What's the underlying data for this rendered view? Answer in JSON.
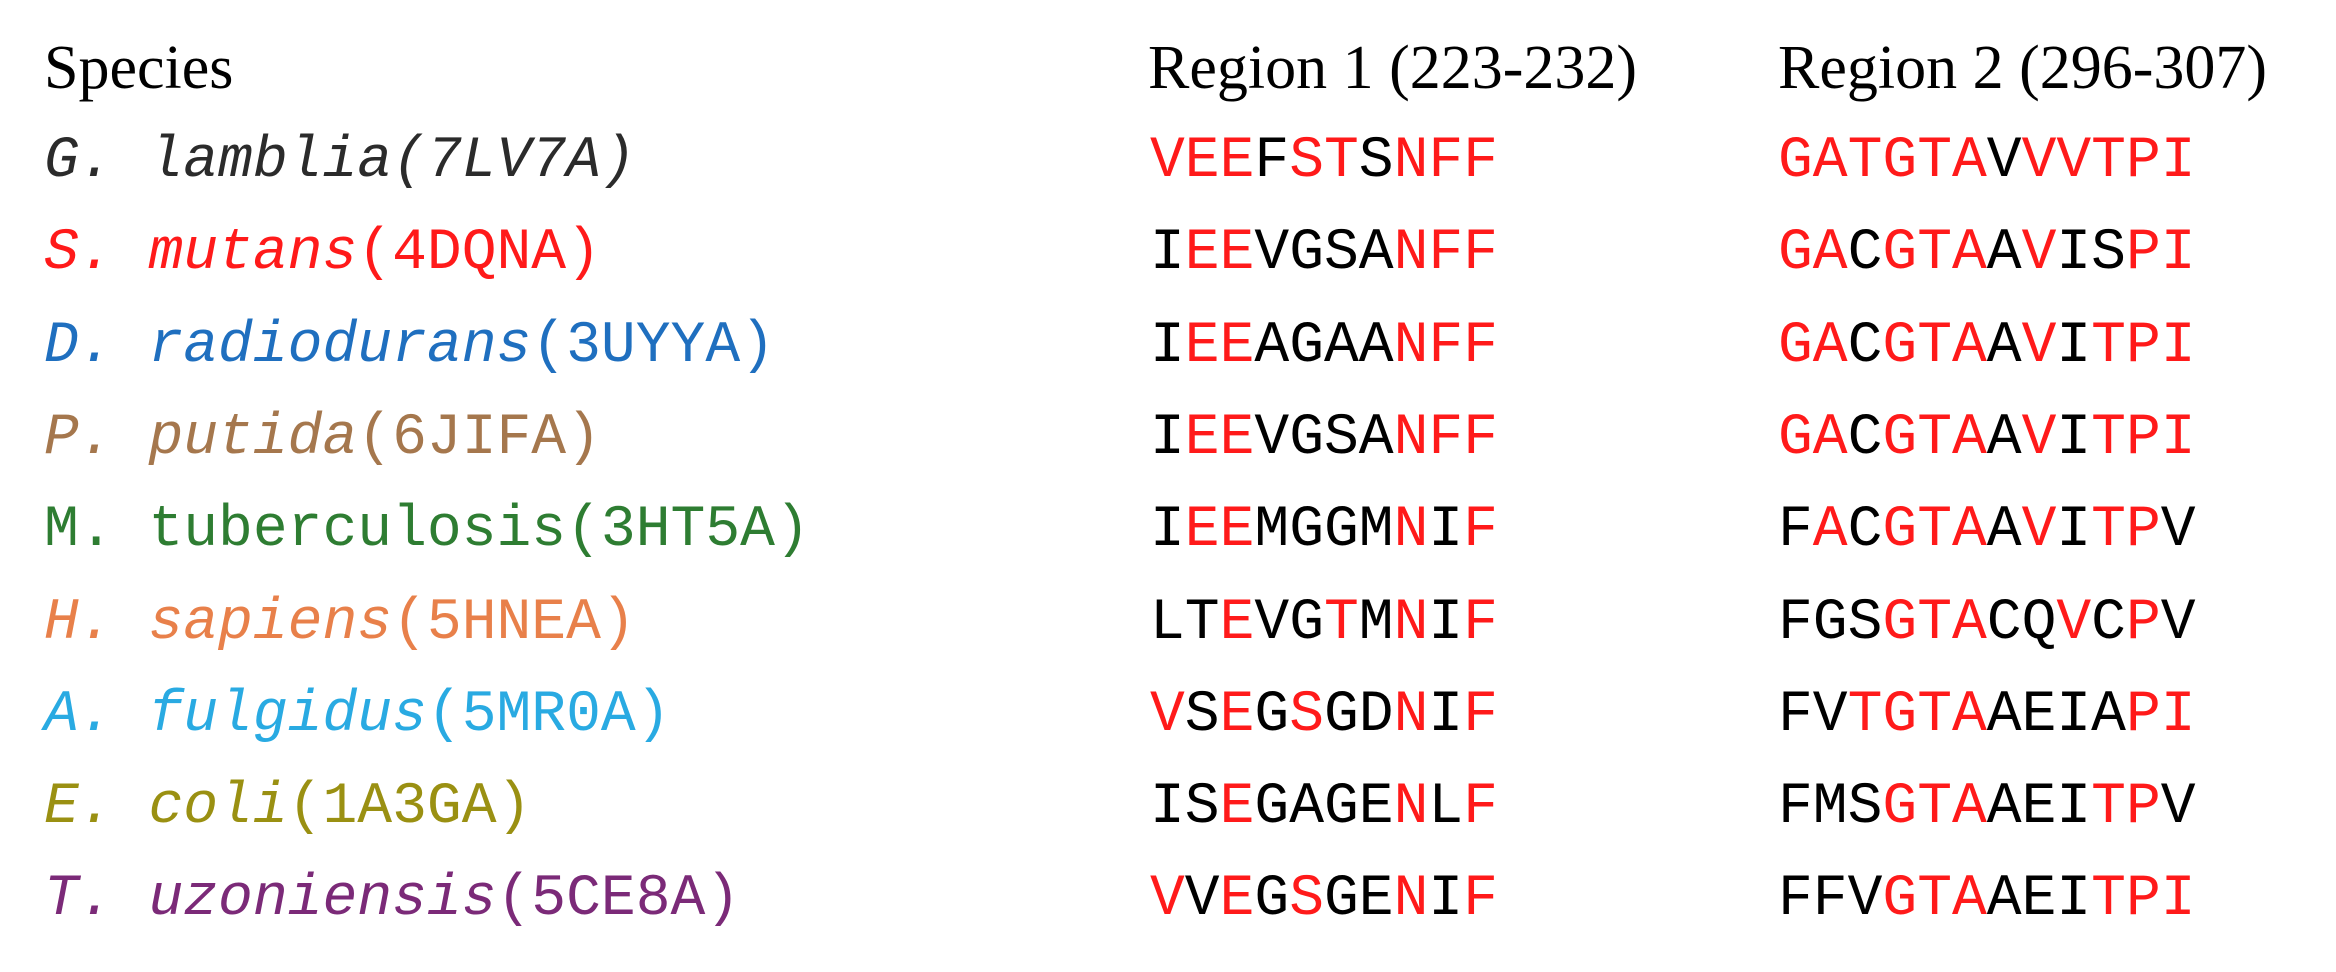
{
  "headers": {
    "species": "Species",
    "region1": "Region 1 (223-232)",
    "region2": "Region 2 (296-307)"
  },
  "highlight_color": "#ff1a1a",
  "plain_color": "#000000",
  "rows": [
    {
      "genus": "G.",
      "epithet": "lamblia",
      "epithet_italic": true,
      "pdb": "(7LV7A)",
      "pdb_italic": true,
      "color": "#2b2b2b",
      "region1": "VEEFSTSNFF",
      "region1_mask": "1110110111",
      "region2": "GATGTAVVVTPI",
      "region2_mask": "111111011111"
    },
    {
      "genus": "S.",
      "epithet": "mutans",
      "epithet_italic": true,
      "pdb": "(4DQNA)",
      "pdb_italic": false,
      "color": "#ff1a1a",
      "region1": "IEEVGSANFF",
      "region1_mask": "0110000111",
      "region2": "GACGTAAVISPI",
      "region2_mask": "110111010011"
    },
    {
      "genus": "D.",
      "epithet": "radiodurans",
      "epithet_italic": true,
      "pdb": "(3UYYA)",
      "pdb_italic": false,
      "color": "#1f6fbf",
      "region1": "IEEAGAANFF",
      "region1_mask": "0110000111",
      "region2": "GACGTAAVITPI",
      "region2_mask": "110111010111"
    },
    {
      "genus": "P.",
      "epithet": "putida",
      "epithet_italic": true,
      "pdb": "(6JIFA)",
      "pdb_italic": false,
      "color": "#a5774d",
      "region1": "IEEVGSANFF",
      "region1_mask": "0110000111",
      "region2": "GACGTAAVITPI",
      "region2_mask": "110111010111"
    },
    {
      "genus": "M.",
      "epithet": "tuberculosis",
      "epithet_italic": false,
      "pdb": "(3HT5A)",
      "pdb_italic": false,
      "color": "#2e7d32",
      "region1": "IEEMGGMNIF",
      "region1_mask": "0110000101",
      "region2": "FACGTAAVITPV",
      "region2_mask": "010111010110"
    },
    {
      "genus": "H.",
      "epithet": "sapiens",
      "epithet_italic": true,
      "pdb": "(5HNEA)",
      "pdb_italic": false,
      "color": "#e8804a",
      "region1": "LTEVGTMNIF",
      "region1_mask": "0010010101",
      "region2": "FGSGTACQVCPV",
      "region2_mask": "000111001010"
    },
    {
      "genus": "A.",
      "epithet": "fulgidus",
      "epithet_italic": true,
      "pdb": "(5MR0A)",
      "pdb_italic": false,
      "color": "#29aae2",
      "region1": "VSEGSGDNIF",
      "region1_mask": "1010100101",
      "region2": "FVTGTAAEIAPI",
      "region2_mask": "001111000011"
    },
    {
      "genus": "E.",
      "epithet": "coli",
      "epithet_italic": true,
      "pdb": "(1A3GA)",
      "pdb_italic": false,
      "color": "#9a9012",
      "region1": "ISEGAGENLF",
      "region1_mask": "0010000101",
      "region2": "FMSGTAAEITPV",
      "region2_mask": "000111000110"
    },
    {
      "genus": "T.",
      "epithet": "uzoniensis",
      "epithet_italic": true,
      "pdb": "(5CE8A)",
      "pdb_italic": false,
      "color": "#7b2a78",
      "region1": "VVEGSGENIF",
      "region1_mask": "1010100101",
      "region2": "FFVGTAAEITPI",
      "region2_mask": "000111000111"
    }
  ]
}
